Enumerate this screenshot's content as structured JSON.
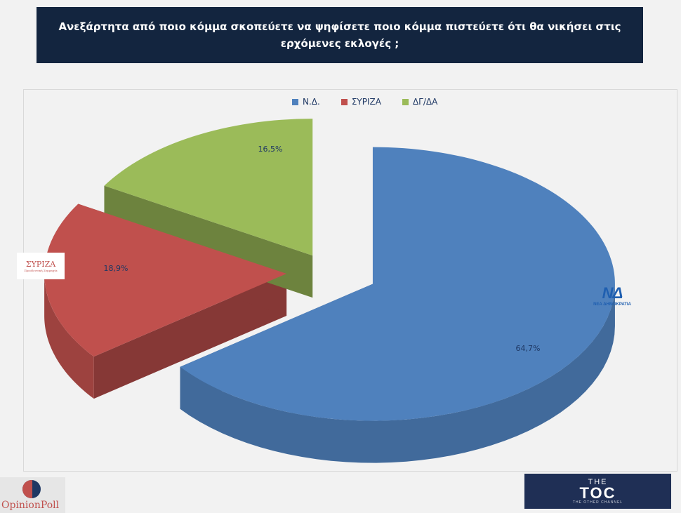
{
  "header": {
    "title": "Ανεξάρτητα από ποιο κόμμα σκοπεύετε να ψηφίσετε ποιο κόμμα πιστεύετε ότι θα νικήσει στις ερχόμενες εκλογές ;"
  },
  "chart_data": {
    "type": "pie",
    "labels": [
      "Ν.Δ.",
      "ΣΥΡΙΖΑ",
      "ΔΓ/ΔΑ"
    ],
    "values": [
      64.7,
      18.9,
      16.5
    ],
    "value_labels": [
      "64,7%",
      "18,9%",
      "16,5%"
    ],
    "colors": [
      "#4f81bd",
      "#c0504d",
      "#9bbb59"
    ],
    "legend_position": "top",
    "style": "3d-exploded"
  },
  "logos": {
    "syriza": "ΣΥΡΙΖΑ",
    "syriza_sub": "Προοδευτική Συμμαχία",
    "nd": "ΝΔ",
    "nd_sub": "ΝΕΑ ΔΗΜΟΚΡΑΤΙΑ",
    "opinion_poll": "OpinionPoll",
    "toc_the": "THE",
    "toc": "TOC",
    "toc_tagline": "THE OTHER CHANNEL"
  }
}
